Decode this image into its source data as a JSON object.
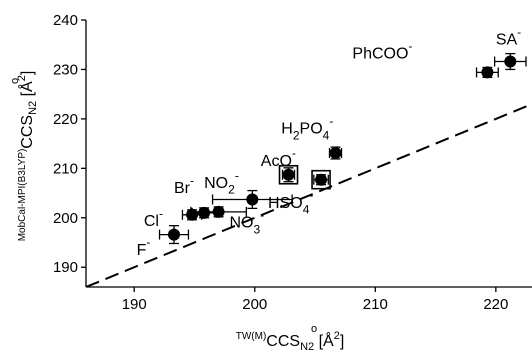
{
  "chart_data": {
    "type": "scatter",
    "xlabel": {
      "pre": "TW(M)",
      "main": "CCS",
      "sub": "N2",
      "unit_pre": " [Å",
      "unit_sup": "2",
      "unit_post": "]"
    },
    "ylabel": {
      "pre": "MobCal-MPI(B3LYP)",
      "main": "CCS",
      "sub": "N2",
      "unit_pre": " [Å",
      "unit_sup": "2",
      "unit_post": "]"
    },
    "xlim": [
      186,
      223
    ],
    "ylim": [
      186,
      240
    ],
    "x_ticks": [
      190,
      200,
      210,
      220
    ],
    "y_ticks": [
      190,
      200,
      210,
      220,
      230,
      240
    ],
    "reference_line": {
      "style": "dashed",
      "slope": 1,
      "intercept": 0
    },
    "points": [
      {
        "label": "F",
        "sup": "-",
        "x": 193.3,
        "y": 196.6,
        "xerr": 1.2,
        "yerr": 1.8,
        "marker": "circle"
      },
      {
        "label": "Cl",
        "sup": "-",
        "x": 194.8,
        "y": 200.6,
        "xerr": 0.8,
        "yerr": 1.0,
        "marker": "circle"
      },
      {
        "label": "",
        "sup": "",
        "x": 195.8,
        "y": 201.0,
        "xerr": 1.0,
        "yerr": 1.0,
        "marker": "circle"
      },
      {
        "label": "",
        "sup": "",
        "x": 197.0,
        "y": 201.2,
        "xerr": 2.3,
        "yerr": 1.0,
        "marker": "circle"
      },
      {
        "label": "NO3",
        "sup": "-",
        "x": 199.8,
        "y": 203.7,
        "xerr": 3.3,
        "yerr": 1.8,
        "marker": "circle"
      },
      {
        "label": "AcO",
        "sup": "-",
        "x": 202.8,
        "y": 208.7,
        "xerr": 0.5,
        "yerr": 1.4,
        "marker": "square"
      },
      {
        "label": "HSO4",
        "sup": "-",
        "x": 205.5,
        "y": 207.7,
        "xerr": 0.6,
        "yerr": 1.0,
        "marker": "square"
      },
      {
        "label": "H2PO4",
        "sup": "-",
        "x": 206.7,
        "y": 213.1,
        "xerr": 0.5,
        "yerr": 1.2,
        "marker": "circle"
      },
      {
        "label": "PhCOO",
        "sup": "-",
        "x": 219.3,
        "y": 229.4,
        "xerr": 0.9,
        "yerr": 1.0,
        "marker": "circle"
      },
      {
        "label": "SA",
        "sup": "-",
        "x": 221.2,
        "y": 231.6,
        "xerr": 1.3,
        "yerr": 1.6,
        "marker": "circle"
      }
    ],
    "annotations": [
      {
        "parts": [
          [
            "F",
            ""
          ],
          [
            "-",
            "sup"
          ]
        ],
        "x": 190.2,
        "y": 192.5
      },
      {
        "parts": [
          [
            "Cl",
            ""
          ],
          [
            "-",
            "sup"
          ]
        ],
        "x": 190.8,
        "y": 198.3
      },
      {
        "parts": [
          [
            "Br",
            ""
          ],
          [
            "-",
            "sup"
          ]
        ],
        "x": 193.3,
        "y": 205.0
      },
      {
        "parts": [
          [
            "NO",
            ""
          ],
          [
            "2",
            "sub"
          ],
          [
            "-",
            "sup"
          ]
        ],
        "x": 195.8,
        "y": 206.0
      },
      {
        "parts": [
          [
            "AcO",
            ""
          ],
          [
            "-",
            "sup"
          ]
        ],
        "x": 200.5,
        "y": 210.5
      },
      {
        "parts": [
          [
            "H",
            ""
          ],
          [
            "2",
            "sub"
          ],
          [
            "PO",
            ""
          ],
          [
            "4",
            "sub"
          ],
          [
            "-",
            "sup"
          ]
        ],
        "x": 202.2,
        "y": 217.0
      },
      {
        "parts": [
          [
            "HSO",
            ""
          ],
          [
            "4",
            "sub"
          ],
          [
            "-",
            "sup"
          ]
        ],
        "x": 201.1,
        "y": 202.0
      },
      {
        "parts": [
          [
            "NO",
            ""
          ],
          [
            "3",
            "sub"
          ],
          [
            "-",
            "sup"
          ]
        ],
        "x": 197.9,
        "y": 198.0
      },
      {
        "parts": [
          [
            "PhCOO",
            ""
          ],
          [
            "-",
            "sup"
          ]
        ],
        "x": 208.1,
        "y": 232.2
      },
      {
        "parts": [
          [
            "SA",
            ""
          ],
          [
            "-",
            "sup"
          ]
        ],
        "x": 220.0,
        "y": 235.0
      }
    ]
  }
}
